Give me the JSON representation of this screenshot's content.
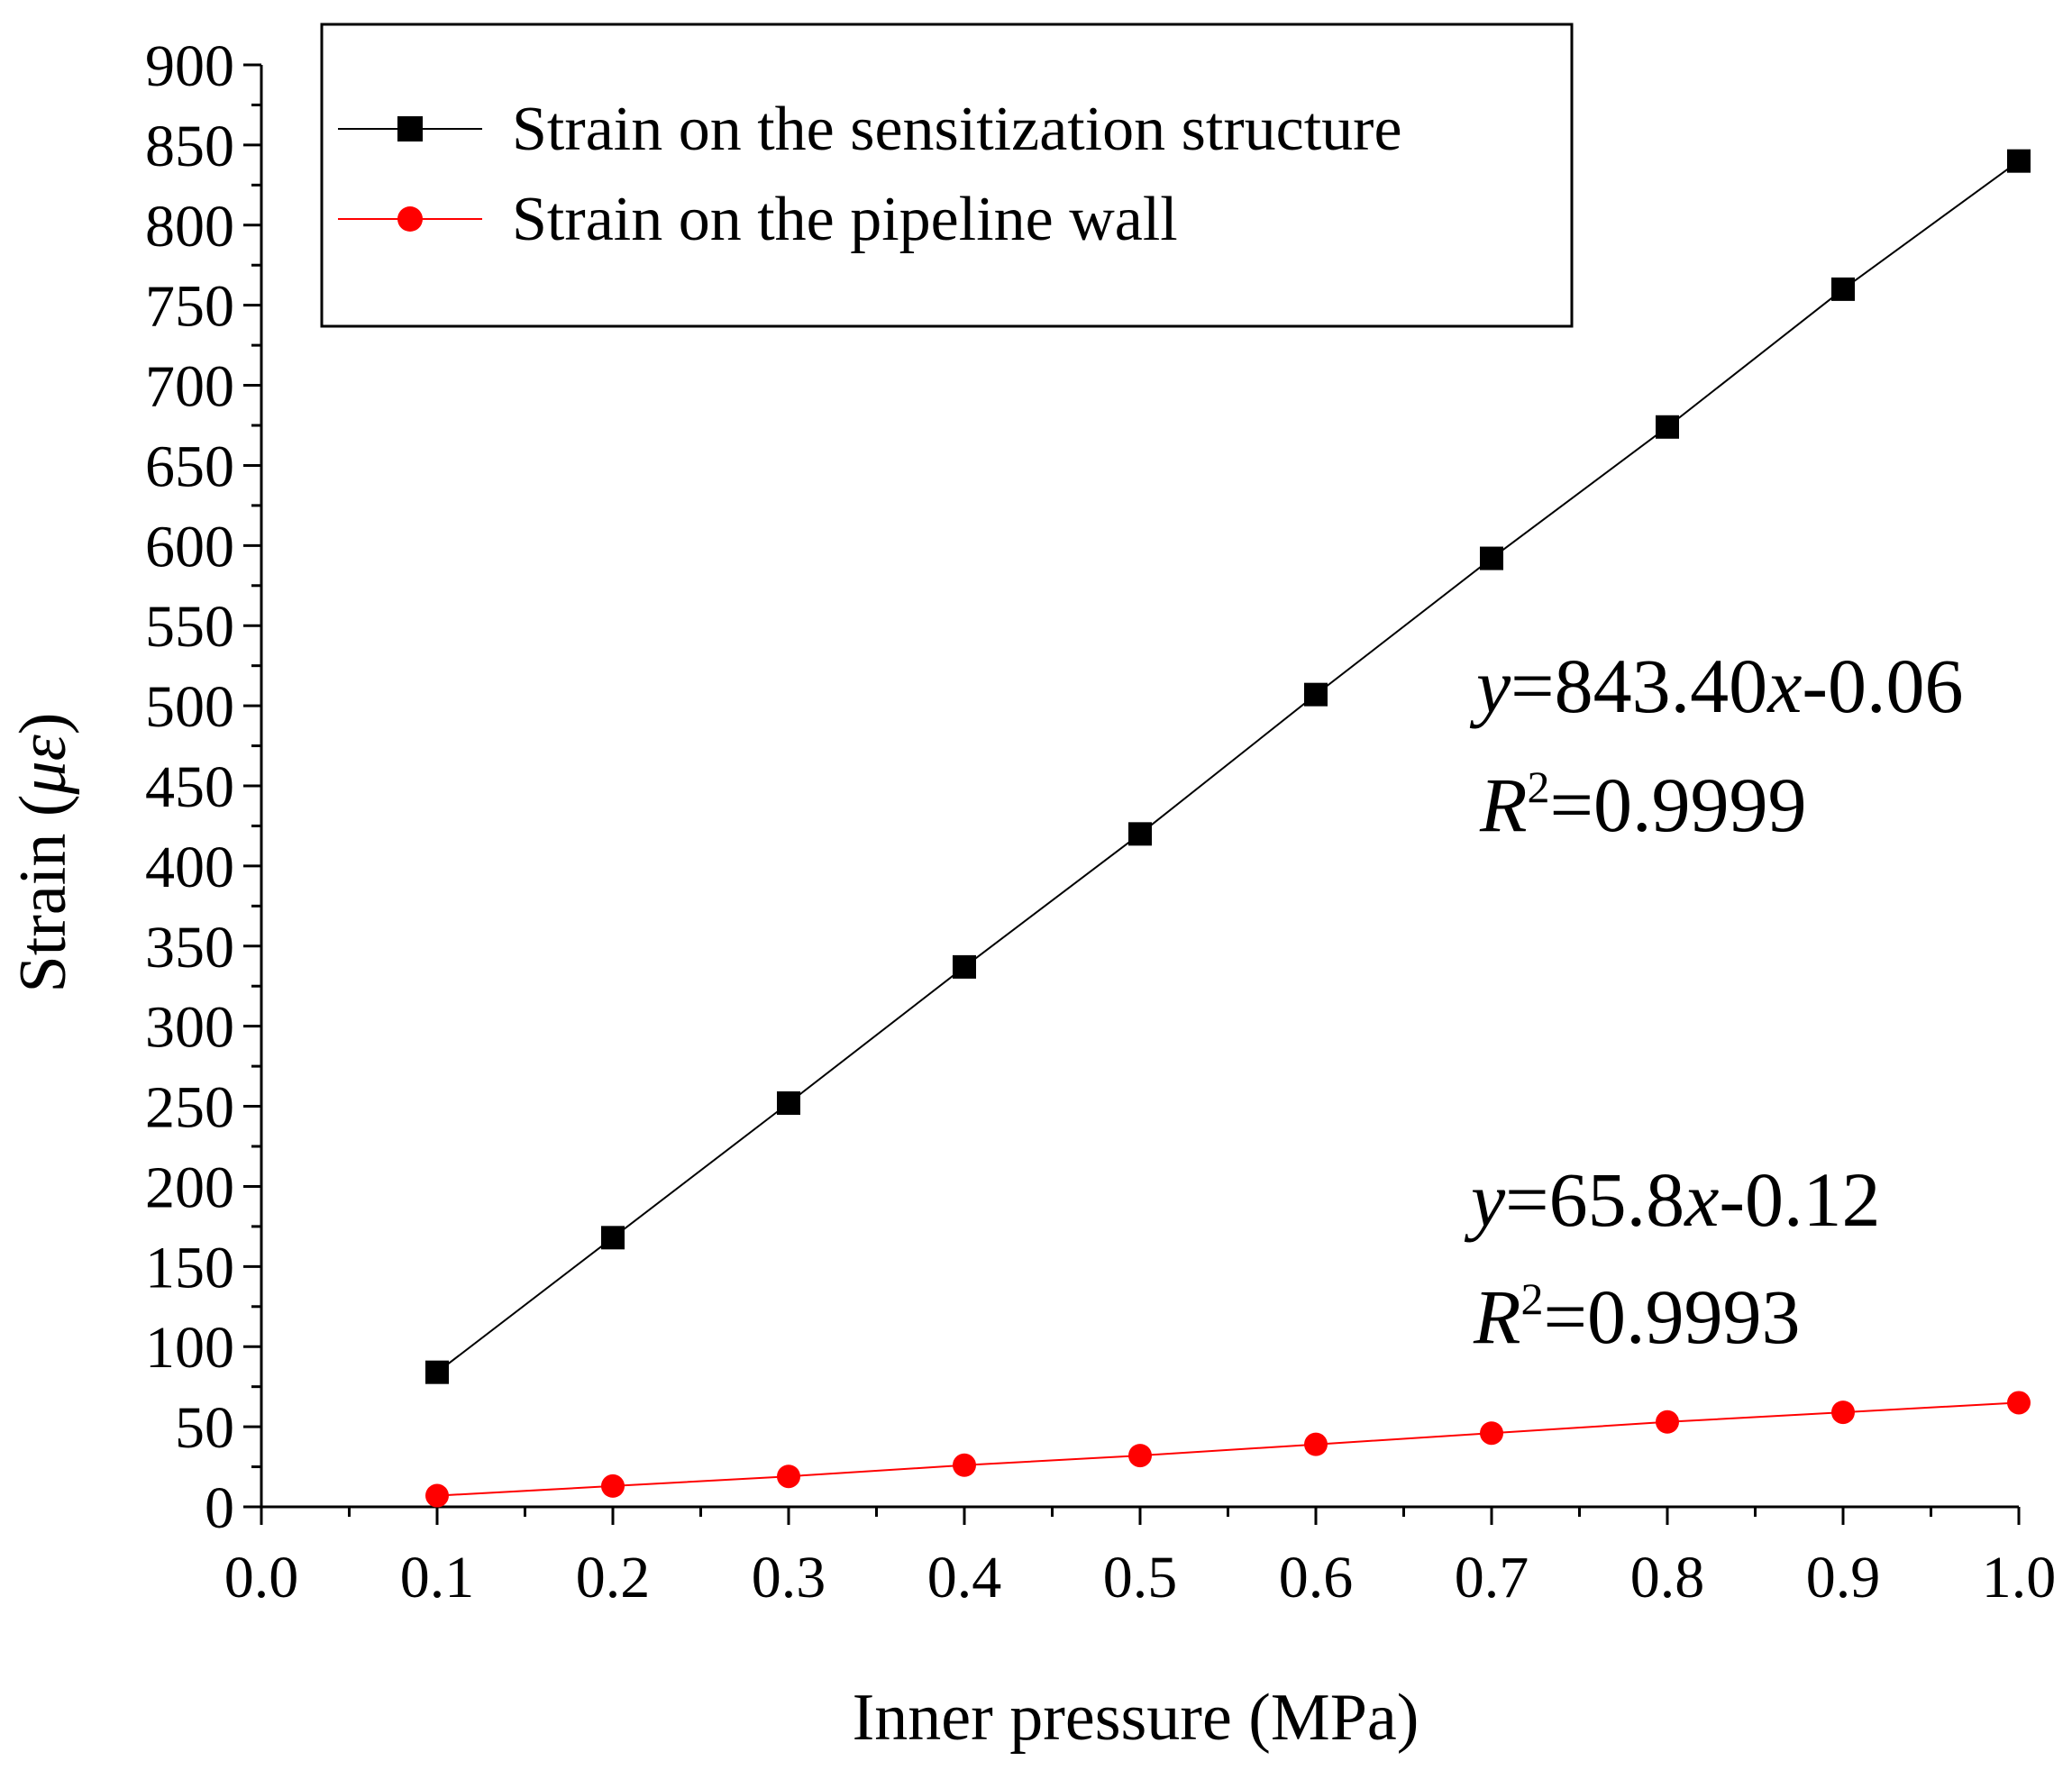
{
  "chart_data": {
    "type": "line",
    "xlabel": "Inner pressure (MPa)",
    "ylabel": "Strain (με)",
    "ylabel_parts": {
      "pre": "Strain (",
      "sym": "με",
      "post": ")"
    },
    "xlim": [
      0.0,
      1.0
    ],
    "ylim": [
      0,
      900
    ],
    "x_ticks": [
      "0.0",
      "0.1",
      "0.2",
      "0.3",
      "0.4",
      "0.5",
      "0.6",
      "0.7",
      "0.8",
      "0.9",
      "1.0"
    ],
    "y_ticks": [
      "0",
      "50",
      "100",
      "150",
      "200",
      "250",
      "300",
      "350",
      "400",
      "450",
      "500",
      "550",
      "600",
      "650",
      "700",
      "750",
      "800",
      "850",
      "900"
    ],
    "grid": false,
    "legend_position": "top",
    "x": [
      0.1,
      0.2,
      0.3,
      0.4,
      0.5,
      0.6,
      0.7,
      0.8,
      0.9,
      1.0
    ],
    "series": [
      {
        "name": "Strain on the sensitization structure",
        "color": "#000000",
        "marker": "square",
        "values": [
          84,
          168,
          252,
          337,
          420,
          507,
          592,
          674,
          760,
          840
        ],
        "fit": {
          "eq_pre": "y",
          "eq_coef": "=843.40",
          "eq_var": "x",
          "eq_post": "-0.06",
          "r_pre": "R",
          "r_sup": "2",
          "r_post": "=0.9999"
        }
      },
      {
        "name": "Strain on the pipeline wall",
        "color": "#ff0000",
        "marker": "circle",
        "values": [
          7,
          13,
          19,
          26,
          32,
          39,
          46,
          53,
          59,
          65
        ],
        "fit": {
          "eq_pre": "y",
          "eq_coef": "=65.8",
          "eq_var": "x",
          "eq_post": "-0.12",
          "r_pre": "R",
          "r_sup": "2",
          "r_post": "=0.9993"
        }
      }
    ]
  }
}
